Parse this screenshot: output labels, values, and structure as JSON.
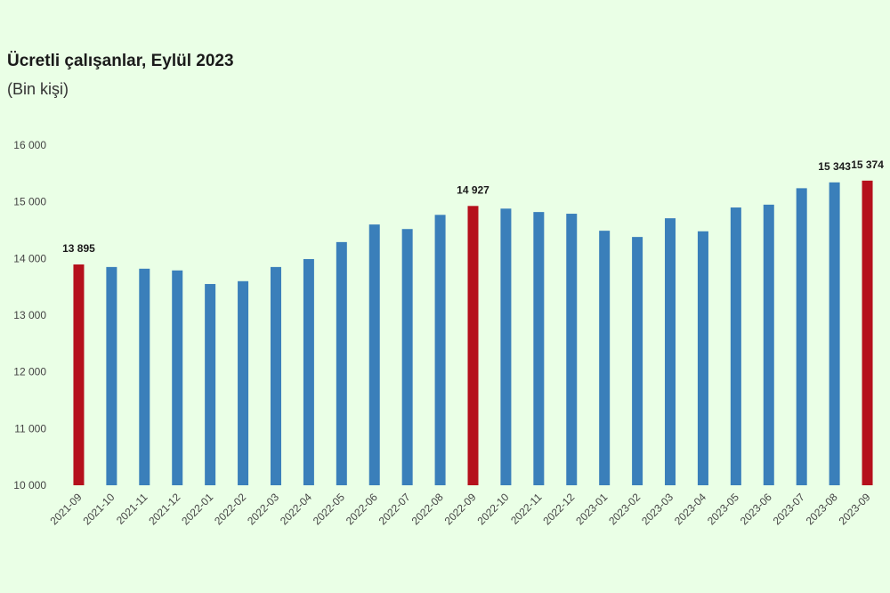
{
  "chart_data": {
    "type": "bar",
    "title": "Ücretli çalışanlar, Eylül 2023",
    "subtitle": "(Bin kişi)",
    "categories": [
      "2021-09",
      "2021-10",
      "2021-11",
      "2021-12",
      "2022-01",
      "2022-02",
      "2022-03",
      "2022-04",
      "2022-05",
      "2022-06",
      "2022-07",
      "2022-08",
      "2022-09",
      "2022-10",
      "2022-11",
      "2022-12",
      "2023-01",
      "2023-02",
      "2023-03",
      "2023-04",
      "2023-05",
      "2023-06",
      "2023-07",
      "2023-08",
      "2023-09"
    ],
    "values": [
      13895,
      13850,
      13820,
      13790,
      13550,
      13600,
      13850,
      13990,
      14290,
      14600,
      14520,
      14770,
      14927,
      14880,
      14820,
      14790,
      14490,
      14380,
      14710,
      14480,
      14900,
      14950,
      15240,
      15343,
      15374
    ],
    "highlighted": [
      "2021-09",
      "2022-09",
      "2023-09"
    ],
    "data_labels": [
      {
        "category": "2021-09",
        "text": "13 895"
      },
      {
        "category": "2022-09",
        "text": "14 927"
      },
      {
        "category": "2023-08",
        "text": "15 343"
      },
      {
        "category": "2023-09",
        "text": "15 374"
      }
    ],
    "y_ticks": [
      "10 000",
      "11 000",
      "12 000",
      "13 000",
      "14 000",
      "15 000",
      "16 000"
    ],
    "ylim": [
      10000,
      16000
    ],
    "grid": false,
    "legend": "none",
    "colors": {
      "bar": "#3a7fba",
      "highlight": "#b5101c"
    }
  }
}
